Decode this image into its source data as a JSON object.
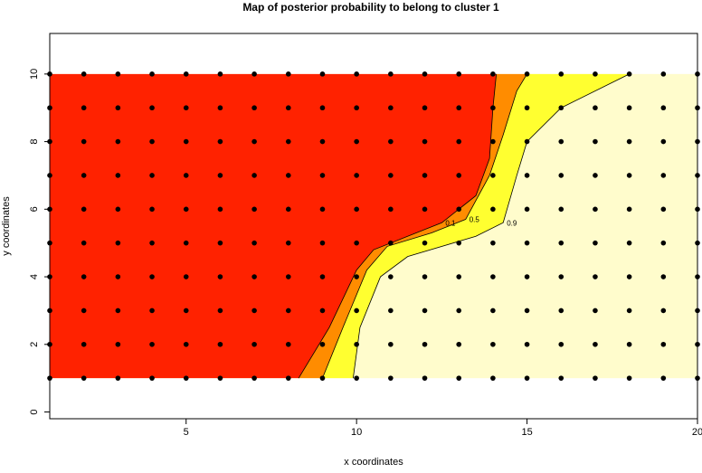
{
  "chart_data": {
    "type": "contour",
    "title": "Map of posterior probability to belong to cluster  1",
    "x_label": "x coordinates",
    "y_label": "y coordinates",
    "xlim": [
      1,
      20
    ],
    "ylim": [
      -0.2,
      11.2
    ],
    "xticks": [
      5,
      10,
      15,
      20
    ],
    "yticks": [
      0,
      2,
      4,
      6,
      8,
      10
    ],
    "points": {
      "x": [
        1,
        2,
        3,
        4,
        5,
        6,
        7,
        8,
        9,
        10,
        11,
        12,
        13,
        14,
        15,
        16,
        17,
        18,
        19,
        20
      ],
      "y": [
        1,
        2,
        3,
        4,
        5,
        6,
        7,
        8,
        9,
        10
      ]
    },
    "contours": [
      {
        "level": 0.1,
        "x": [
          8.3,
          9.2,
          10.0,
          10.5,
          12.5,
          13.5,
          13.9,
          14.0,
          14.1
        ],
        "y": [
          1,
          2.5,
          4.2,
          4.8,
          5.6,
          6.4,
          7.5,
          9,
          10
        ]
      },
      {
        "level": 0.5,
        "x": [
          9.0,
          9.6,
          10.3,
          10.9,
          12.2,
          13.2,
          13.9,
          14.3,
          14.7,
          15.0
        ],
        "y": [
          1,
          2.5,
          4.2,
          4.9,
          5.3,
          5.7,
          7.0,
          8.2,
          9.5,
          10
        ]
      },
      {
        "level": 0.9,
        "x": [
          9.9,
          10.1,
          10.7,
          11.5,
          13.5,
          14.3,
          14.7,
          15.0,
          16,
          18
        ],
        "y": [
          1,
          2.5,
          4,
          4.6,
          5.2,
          5.6,
          7.0,
          8.0,
          9,
          10
        ]
      }
    ],
    "fill_colors": [
      "#ff2200",
      "#ff8c00",
      "#ffff30",
      "#fffccc"
    ]
  }
}
